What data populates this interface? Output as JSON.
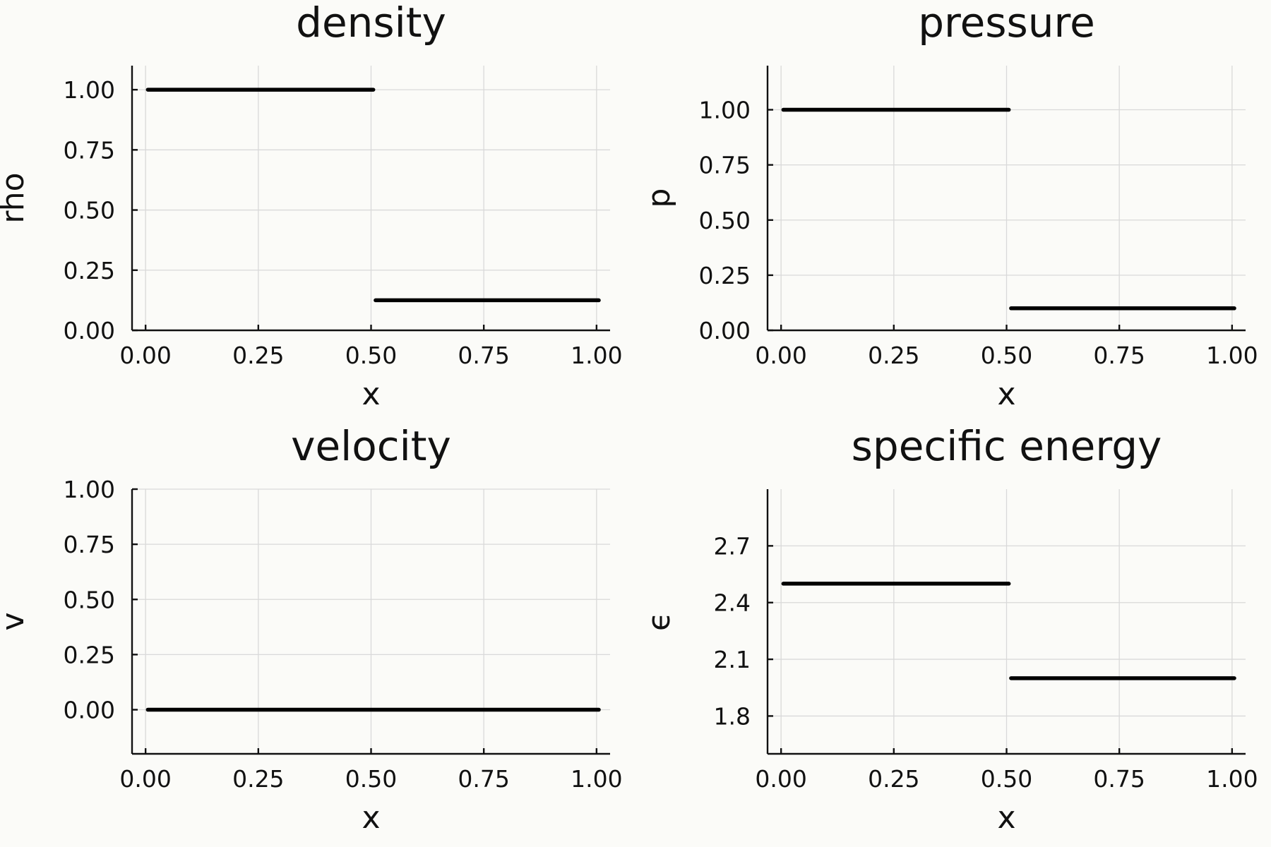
{
  "chart_data": [
    {
      "type": "line",
      "title": "density",
      "xlabel": "x",
      "ylabel": "rho",
      "xlim": [
        -0.03,
        1.03
      ],
      "ylim": [
        -0.0,
        1.1
      ],
      "xticks": [
        "0.00",
        "0.25",
        "0.50",
        "0.75",
        "1.00"
      ],
      "yticks": [
        "0.00",
        "0.25",
        "0.50",
        "0.75",
        "1.00"
      ],
      "grid": true,
      "series": [
        {
          "segments": [
            {
              "x": [
                0.005,
                0.505
              ],
              "y": [
                1.0,
                1.0
              ]
            },
            {
              "x": [
                0.51,
                1.005
              ],
              "y": [
                0.125,
                0.125
              ]
            }
          ]
        }
      ]
    },
    {
      "type": "line",
      "title": "pressure",
      "xlabel": "x",
      "ylabel": "p",
      "xlim": [
        -0.03,
        1.03
      ],
      "ylim": [
        0.0,
        1.2
      ],
      "xticks": [
        "0.00",
        "0.25",
        "0.50",
        "0.75",
        "1.00"
      ],
      "yticks": [
        "0.00",
        "0.25",
        "0.50",
        "0.75",
        "1.00"
      ],
      "grid": true,
      "series": [
        {
          "segments": [
            {
              "x": [
                0.005,
                0.505
              ],
              "y": [
                1.0,
                1.0
              ]
            },
            {
              "x": [
                0.51,
                1.005
              ],
              "y": [
                0.1,
                0.1
              ]
            }
          ]
        }
      ]
    },
    {
      "type": "line",
      "title": "velocity",
      "xlabel": "x",
      "ylabel": "v",
      "xlim": [
        -0.03,
        1.03
      ],
      "ylim": [
        -0.2,
        1.0
      ],
      "xticks": [
        "0.00",
        "0.25",
        "0.50",
        "0.75",
        "1.00"
      ],
      "yticks": [
        "0.00",
        "0.25",
        "0.50",
        "0.75",
        "1.00"
      ],
      "grid": true,
      "series": [
        {
          "segments": [
            {
              "x": [
                0.005,
                1.005
              ],
              "y": [
                0.0,
                0.0
              ]
            }
          ]
        }
      ]
    },
    {
      "type": "line",
      "title": "specific energy",
      "xlabel": "x",
      "ylabel": "ϵ",
      "xlim": [
        -0.03,
        1.03
      ],
      "ylim": [
        1.6,
        3.0
      ],
      "xticks": [
        "0.00",
        "0.25",
        "0.50",
        "0.75",
        "1.00"
      ],
      "yticks": [
        "1.8",
        "2.1",
        "2.4",
        "2.7"
      ],
      "grid": true,
      "series": [
        {
          "segments": [
            {
              "x": [
                0.005,
                0.505
              ],
              "y": [
                2.5,
                2.5
              ]
            },
            {
              "x": [
                0.51,
                1.005
              ],
              "y": [
                2.0,
                2.0
              ]
            }
          ]
        }
      ]
    }
  ]
}
